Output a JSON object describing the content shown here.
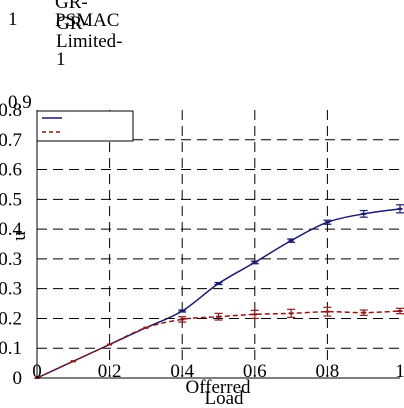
{
  "chart_data": {
    "type": "line",
    "title": "",
    "xlabel": "Offerred Load",
    "ylabel": "u",
    "xlim": [
      0,
      1
    ],
    "ylim": [
      0,
      0.8
    ],
    "x_ticks": [
      "0",
      "0.2",
      "0.4",
      "0.6",
      "0.8",
      "1"
    ],
    "y_ticks": [
      "0",
      "0.1",
      "0.2",
      "0.3",
      "0.3",
      "0.4",
      "0.5",
      "0.6",
      "0.7",
      "0.8"
    ],
    "top_labels": [
      "1",
      "0.9"
    ],
    "grid": true,
    "legend_position": "top-left",
    "x": [
      0,
      0.1,
      0.2,
      0.3,
      0.4,
      0.5,
      0.6,
      0.7,
      0.8,
      0.9,
      1.0
    ],
    "series": [
      {
        "name": "GR-PSMAC",
        "color": "#1a1a6e",
        "dash": "solid",
        "values": [
          0,
          0.05,
          0.1,
          0.15,
          0.2,
          0.282,
          0.345,
          0.41,
          0.465,
          0.49,
          0.505
        ],
        "errors": [
          0,
          0,
          0,
          0,
          0.003,
          0.003,
          0.004,
          0.005,
          0.006,
          0.01,
          0.012
        ]
      },
      {
        "name": "GR-Limited-1",
        "color": "#8b1a1a",
        "dash": "dashed",
        "values": [
          0,
          0.05,
          0.1,
          0.15,
          0.175,
          0.183,
          0.19,
          0.193,
          0.198,
          0.195,
          0.2
        ],
        "errors": [
          0,
          0,
          0,
          0,
          0.008,
          0.01,
          0.012,
          0.012,
          0.013,
          0.008,
          0.008
        ]
      }
    ]
  }
}
